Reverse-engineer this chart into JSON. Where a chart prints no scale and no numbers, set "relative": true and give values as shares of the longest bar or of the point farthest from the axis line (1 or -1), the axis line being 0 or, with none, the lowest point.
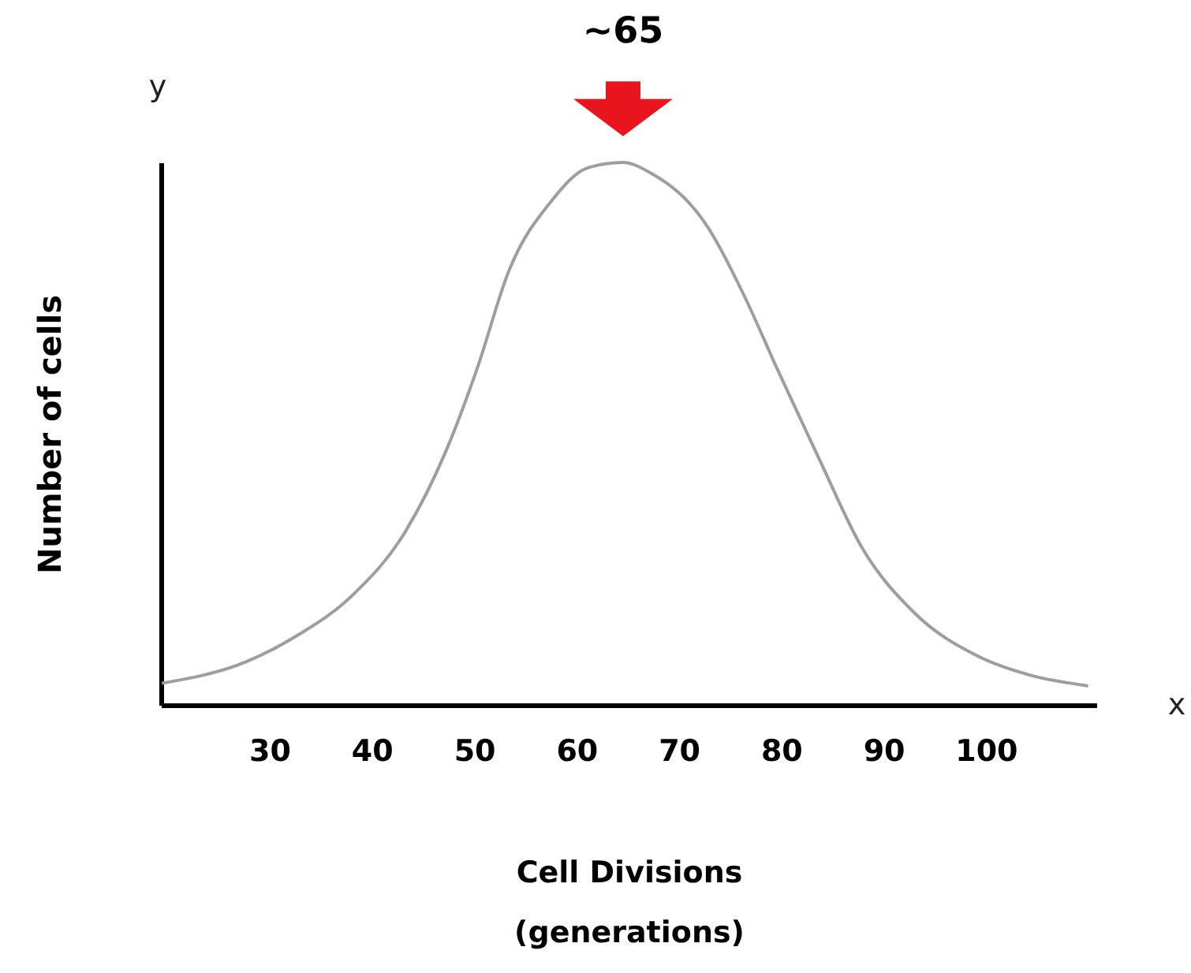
{
  "chart_data": {
    "type": "line",
    "relative": true,
    "xlabel": "Cell Divisions\n(generations)",
    "ylabel": "Number of cells",
    "xlim": [
      19.4,
      110.8
    ],
    "xticks": [
      30,
      40,
      50,
      60,
      70,
      80,
      90,
      100
    ],
    "grid": false,
    "marker": "none",
    "line_style": "solid",
    "annotations": [
      "~65",
      "y",
      "x"
    ],
    "series": [
      {
        "color": "#9e9e9e",
        "x": [
          19.5,
          27.8,
          32.9,
          38.0,
          43.3,
          47.3,
          50.3,
          53.4,
          57.6,
          61.1,
          64.5,
          67.3,
          72.5,
          76.5,
          79.6,
          83.8,
          87.9,
          93.0,
          99.2,
          104.3,
          110.0
        ],
        "values": [
          0.04,
          0.08,
          0.13,
          0.2,
          0.32,
          0.47,
          0.62,
          0.8,
          0.93,
          0.99,
          1,
          0.98,
          0.89,
          0.75,
          0.62,
          0.45,
          0.29,
          0.17,
          0.09,
          0.055,
          0.035
        ]
      }
    ]
  }
}
